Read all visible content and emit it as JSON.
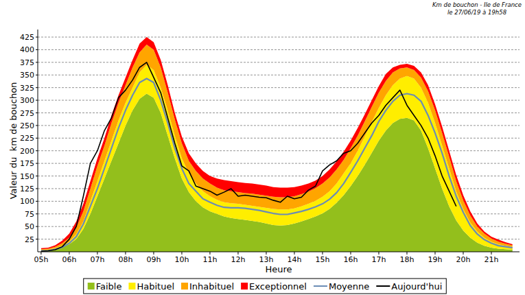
{
  "chart_data": {
    "type": "area",
    "title": "Km de bouchon - Ile de France",
    "subtitle": "le 27/06/19 à 19h58",
    "x_label": "Heure",
    "y_label": "Valeur du  km de bouchon",
    "stacked": true,
    "grid": true,
    "legend": "bottom",
    "xlim": [
      4.88,
      22
    ],
    "ylim": [
      0,
      440
    ],
    "xticks": [
      {
        "value": 5,
        "label": "05h"
      },
      {
        "value": 6,
        "label": "06h"
      },
      {
        "value": 7,
        "label": "07h"
      },
      {
        "value": 8,
        "label": "08h"
      },
      {
        "value": 9,
        "label": "09h"
      },
      {
        "value": 10,
        "label": "10h"
      },
      {
        "value": 11,
        "label": "11h"
      },
      {
        "value": 12,
        "label": "12h"
      },
      {
        "value": 13,
        "label": "13h"
      },
      {
        "value": 14,
        "label": "14h"
      },
      {
        "value": 15,
        "label": "15h"
      },
      {
        "value": 16,
        "label": "16h"
      },
      {
        "value": 17,
        "label": "17h"
      },
      {
        "value": 18,
        "label": "18h"
      },
      {
        "value": 19,
        "label": "19h"
      },
      {
        "value": 20,
        "label": "20h"
      },
      {
        "value": 21,
        "label": "21h"
      }
    ],
    "yticks": [
      25,
      50,
      75,
      100,
      125,
      150,
      175,
      200,
      225,
      250,
      275,
      300,
      325,
      350,
      375,
      400,
      425
    ],
    "x": [
      5,
      5.25,
      5.5,
      5.75,
      6,
      6.25,
      6.5,
      6.75,
      7,
      7.25,
      7.5,
      7.75,
      8,
      8.25,
      8.5,
      8.75,
      9,
      9.25,
      9.5,
      9.75,
      10,
      10.25,
      10.5,
      10.75,
      11,
      11.25,
      11.5,
      11.75,
      12,
      12.25,
      12.5,
      12.75,
      13,
      13.25,
      13.5,
      13.75,
      14,
      14.25,
      14.5,
      14.75,
      15,
      15.25,
      15.5,
      15.75,
      16,
      16.25,
      16.5,
      16.75,
      17,
      17.25,
      17.5,
      17.75,
      18,
      18.25,
      18.5,
      18.75,
      19,
      19.25,
      19.5,
      19.75,
      20,
      20.25,
      20.5,
      20.75,
      21,
      21.25,
      21.5,
      21.75
    ],
    "series": [
      {
        "name": "Faible",
        "type": "area",
        "color": "#93bf1c",
        "values": [
          2,
          3,
          5,
          9,
          15,
          25,
          45,
          75,
          110,
          145,
          180,
          215,
          250,
          280,
          303,
          313,
          305,
          275,
          230,
          185,
          145,
          118,
          100,
          88,
          80,
          75,
          70,
          67,
          65,
          63,
          61,
          59,
          56,
          53,
          52,
          53,
          56,
          60,
          65,
          70,
          76,
          85,
          97,
          112,
          130,
          150,
          172,
          196,
          220,
          240,
          255,
          263,
          265,
          260,
          240,
          205,
          165,
          125,
          90,
          62,
          42,
          28,
          18,
          12,
          8,
          6,
          5,
          4
        ]
      },
      {
        "name": "Habituel",
        "type": "area",
        "color": "#ffee00",
        "values": [
          1,
          1,
          2,
          3,
          5,
          10,
          15,
          25,
          30,
          35,
          40,
          45,
          45,
          45,
          52,
          57,
          55,
          50,
          50,
          45,
          40,
          37,
          35,
          32,
          30,
          28,
          28,
          29,
          30,
          30,
          30,
          30,
          31,
          32,
          32,
          31,
          30,
          30,
          30,
          31,
          33,
          35,
          38,
          43,
          45,
          50,
          56,
          61,
          65,
          70,
          75,
          80,
          83,
          83,
          85,
          90,
          90,
          85,
          75,
          58,
          43,
          30,
          22,
          16,
          12,
          9,
          7,
          6
        ]
      },
      {
        "name": "Inhabituel",
        "type": "area",
        "color": "#ffa500",
        "values": [
          2,
          2,
          3,
          5,
          8,
          13,
          20,
          25,
          30,
          30,
          35,
          35,
          35,
          40,
          40,
          40,
          40,
          40,
          35,
          32,
          30,
          25,
          25,
          25,
          25,
          24,
          24,
          24,
          23,
          23,
          24,
          24,
          24,
          24,
          24,
          24,
          24,
          24,
          24,
          25,
          26,
          27,
          28,
          27,
          30,
          30,
          30,
          30,
          30,
          28,
          25,
          20,
          17,
          17,
          20,
          23,
          25,
          25,
          23,
          20,
          17,
          14,
          10,
          8,
          6,
          5,
          4,
          3
        ]
      },
      {
        "name": "Exceptionnel",
        "type": "area",
        "color": "#ff0000",
        "values": [
          2,
          2,
          3,
          5,
          8,
          12,
          15,
          15,
          15,
          15,
          15,
          15,
          15,
          15,
          17,
          15,
          15,
          15,
          15,
          13,
          13,
          15,
          15,
          15,
          15,
          18,
          20,
          20,
          20,
          20,
          20,
          20,
          20,
          19,
          19,
          19,
          18,
          17,
          16,
          15,
          15,
          16,
          16,
          16,
          15,
          15,
          14,
          13,
          13,
          14,
          10,
          7,
          7,
          8,
          10,
          12,
          12,
          13,
          12,
          12,
          10,
          8,
          6,
          4,
          4,
          4,
          3,
          2
        ]
      },
      {
        "name": "Moyenne",
        "type": "line",
        "color": "#6b8cb5",
        "values": [
          2,
          2,
          5,
          9,
          17,
          30,
          55,
          90,
          125,
          165,
          205,
          245,
          280,
          310,
          335,
          343,
          335,
          300,
          255,
          205,
          165,
          135,
          120,
          105,
          98,
          92,
          88,
          87,
          87,
          86,
          84,
          82,
          79,
          76,
          74,
          74,
          77,
          80,
          84,
          89,
          95,
          104,
          117,
          135,
          157,
          180,
          205,
          230,
          258,
          280,
          298,
          310,
          313,
          310,
          298,
          270,
          235,
          195,
          150,
          110,
          78,
          52,
          35,
          24,
          17,
          12,
          10,
          8
        ]
      },
      {
        "name": "Aujourd'hui",
        "type": "line",
        "color": "#000000",
        "values": [
          1,
          2,
          4,
          10,
          25,
          50,
          110,
          175,
          200,
          240,
          265,
          305,
          320,
          340,
          365,
          375,
          345,
          315,
          265,
          215,
          170,
          160,
          130,
          125,
          120,
          112,
          118,
          125,
          110,
          112,
          110,
          108,
          107,
          102,
          98,
          110,
          105,
          108,
          122,
          130,
          160,
          172,
          180,
          195,
          200,
          215,
          235,
          255,
          270,
          290,
          305,
          320,
          290,
          270,
          250,
          225,
          190,
          150,
          120,
          90,
          null,
          null,
          null,
          null,
          null,
          null,
          null,
          null
        ]
      }
    ]
  }
}
